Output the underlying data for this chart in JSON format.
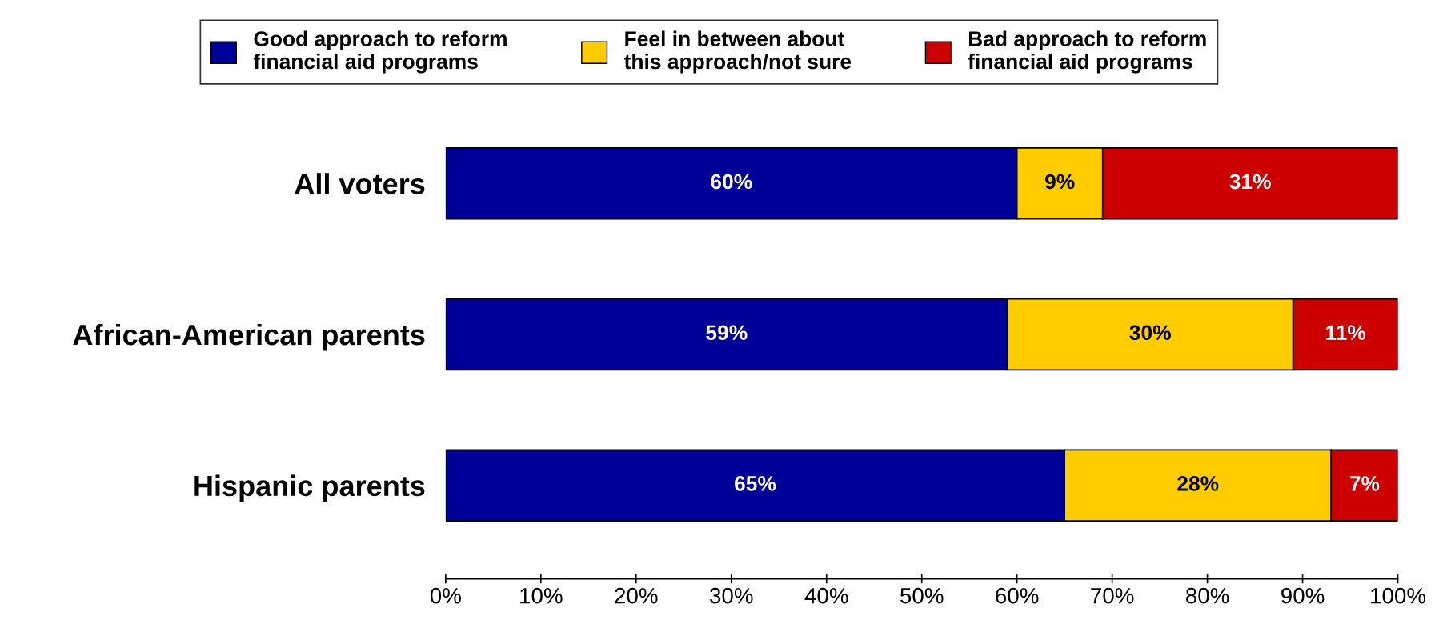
{
  "chart_data": {
    "type": "bar",
    "orientation": "horizontal",
    "stacked": true,
    "categories": [
      "All voters",
      "African-American parents",
      "Hispanic parents"
    ],
    "series": [
      {
        "name": "Good approach to reform\nfinancial aid programs",
        "color": "#000099",
        "values": [
          60,
          59,
          65
        ],
        "value_labels": [
          "60%",
          "59%",
          "65%"
        ]
      },
      {
        "name": "Feel in between about\nthis approach/not sure",
        "color": "#ffcc00",
        "values": [
          9,
          30,
          28
        ],
        "value_labels": [
          "9%",
          "30%",
          "28%"
        ]
      },
      {
        "name": "Bad approach to reform\nfinancial aid programs",
        "color": "#cc0000",
        "values": [
          31,
          11,
          7
        ],
        "value_labels": [
          "31%",
          "11%",
          "7%"
        ]
      }
    ],
    "xlim": [
      0,
      100
    ],
    "xticks": [
      {
        "value": 0,
        "label": "0%"
      },
      {
        "value": 10,
        "label": "10%"
      },
      {
        "value": 20,
        "label": "20%"
      },
      {
        "value": 30,
        "label": "30%"
      },
      {
        "value": 40,
        "label": "40%"
      },
      {
        "value": 50,
        "label": "50%"
      },
      {
        "value": 60,
        "label": "60%"
      },
      {
        "value": 70,
        "label": "70%"
      },
      {
        "value": 80,
        "label": "80%"
      },
      {
        "value": 90,
        "label": "90%"
      },
      {
        "value": 100,
        "label": "100%"
      }
    ],
    "grid": false,
    "legend": "top"
  }
}
